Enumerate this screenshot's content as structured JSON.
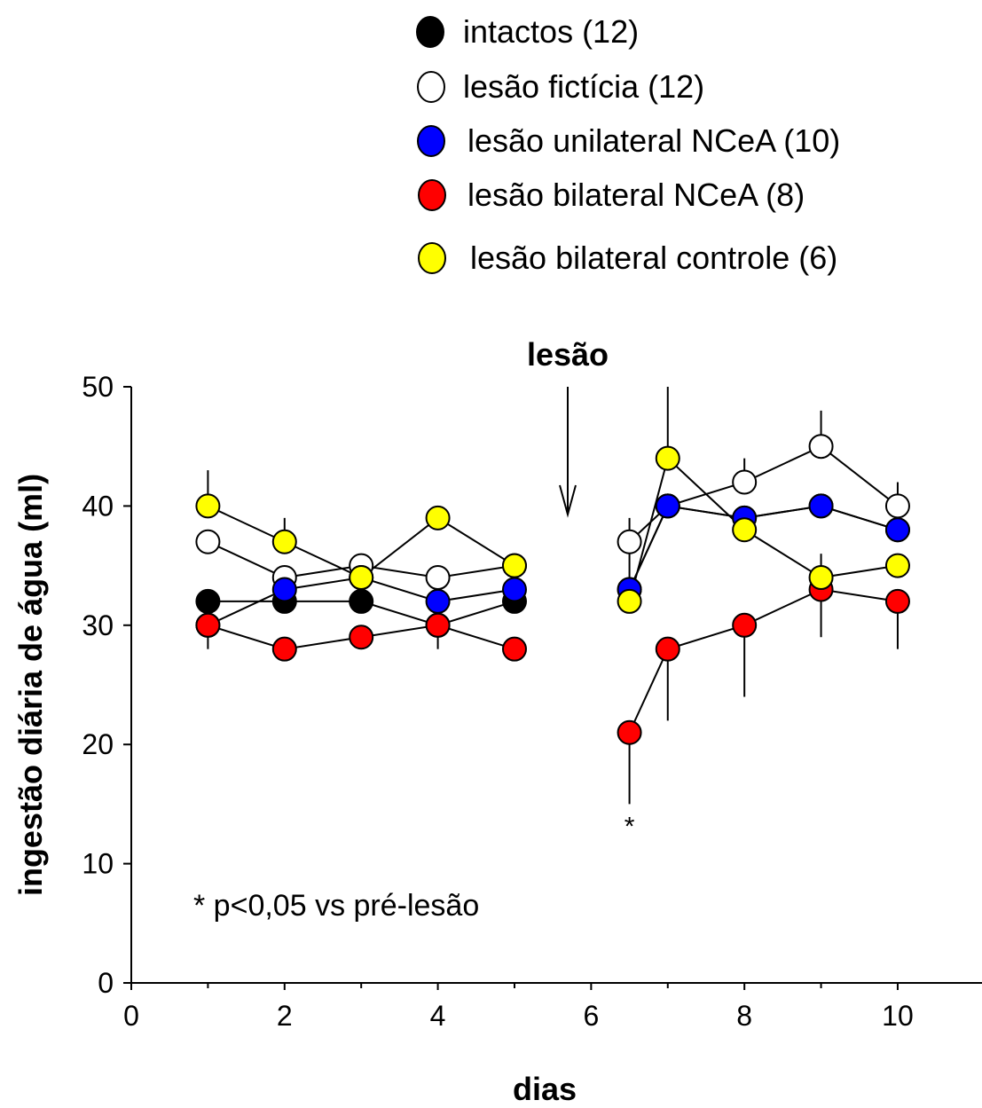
{
  "chart_data": {
    "type": "line",
    "xlabel": "dias",
    "ylabel": "ingestão diária de água (ml)",
    "xlim": [
      0,
      11.1
    ],
    "ylim": [
      0,
      50
    ],
    "xticks": [
      "0",
      "2",
      "4",
      "6",
      "8",
      "10"
    ],
    "yticks": [
      "0",
      "10",
      "20",
      "30",
      "40",
      "50"
    ],
    "grid": false,
    "legend_position": "top-right",
    "annotations": {
      "event_label": "lesão",
      "event_x": 5.65,
      "significance_mark": "*",
      "significance_x": 6.5,
      "significance_y": 13,
      "footnote": "* p<0,05 vs pré-lesão"
    },
    "series": [
      {
        "name": "intactos (12)",
        "color": "#000000",
        "pre": {
          "x": [
            1,
            2,
            3,
            4,
            5
          ],
          "y": [
            32,
            32,
            32,
            30,
            32
          ],
          "err": [
            0,
            0,
            0,
            0,
            0
          ]
        },
        "post": {
          "x": [
            6.5,
            7,
            8,
            9,
            10
          ],
          "y": [
            33,
            40,
            39,
            40,
            38
          ],
          "err": [
            0,
            0,
            0,
            0,
            0
          ]
        }
      },
      {
        "name": "lesão fictícia (12)",
        "color": "#ffffff",
        "pre": {
          "x": [
            1,
            2,
            3,
            4,
            5
          ],
          "y": [
            37,
            34,
            35,
            34,
            35
          ],
          "err": [
            0,
            0,
            0,
            0,
            0
          ]
        },
        "post": {
          "x": [
            6.5,
            7,
            8,
            9,
            10
          ],
          "y": [
            37,
            40,
            42,
            45,
            40
          ],
          "err": [
            0,
            0,
            2,
            3,
            2
          ]
        }
      },
      {
        "name": "lesão unilateral NCeA (10)",
        "color": "#0000ff",
        "pre": {
          "x": [
            1,
            2,
            3,
            4,
            5
          ],
          "y": [
            30,
            33,
            34,
            32,
            33
          ],
          "err": [
            0,
            0,
            0,
            0,
            0
          ]
        },
        "post": {
          "x": [
            6.5,
            7,
            8,
            9,
            10
          ],
          "y": [
            33,
            40,
            39,
            40,
            38
          ],
          "err": [
            6,
            0,
            0,
            0,
            0
          ]
        }
      },
      {
        "name": "lesão bilateral NCeA (8)",
        "color": "#ff0000",
        "pre": {
          "x": [
            1,
            2,
            3,
            4,
            5
          ],
          "y": [
            30,
            28,
            29,
            30,
            28
          ],
          "err": [
            2,
            0,
            0,
            2,
            0
          ]
        },
        "post": {
          "x": [
            6.5,
            7,
            8,
            9,
            10
          ],
          "y": [
            21,
            28,
            30,
            33,
            32
          ],
          "err": [
            6,
            6,
            6,
            4,
            4
          ]
        }
      },
      {
        "name": "lesão bilateral controle (6)",
        "color": "#ffff00",
        "pre": {
          "x": [
            1,
            2,
            3,
            4,
            5
          ],
          "y": [
            40,
            37,
            34,
            39,
            35
          ],
          "err": [
            3,
            2,
            0,
            0,
            0
          ]
        },
        "post": {
          "x": [
            6.5,
            7,
            8,
            9,
            10
          ],
          "y": [
            32,
            44,
            38,
            34,
            35
          ],
          "err": [
            0,
            6,
            0,
            2,
            0
          ]
        }
      }
    ]
  }
}
